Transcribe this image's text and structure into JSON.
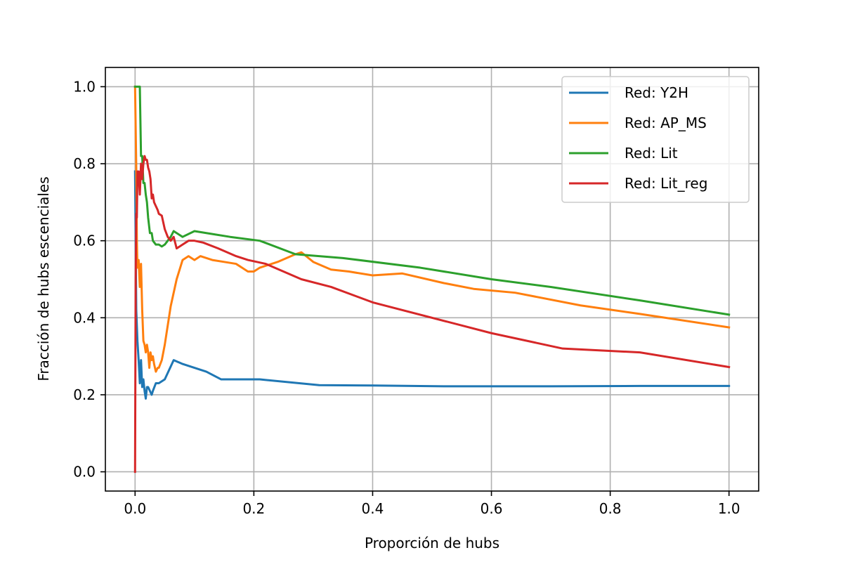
{
  "chart_data": {
    "type": "line",
    "title": "",
    "xlabel": "Proporción de hubs",
    "ylabel": "Fracción de hubs escenciales",
    "xlim": [
      -0.05,
      1.05
    ],
    "ylim": [
      -0.05,
      1.05
    ],
    "xticks": [
      0.0,
      0.2,
      0.4,
      0.6,
      0.8,
      1.0
    ],
    "xtick_labels": [
      "0.0",
      "0.2",
      "0.4",
      "0.6",
      "0.8",
      "1.0"
    ],
    "yticks": [
      0.0,
      0.2,
      0.4,
      0.6,
      0.8,
      1.0
    ],
    "ytick_labels": [
      "0.0",
      "0.2",
      "0.4",
      "0.6",
      "0.8",
      "1.0"
    ],
    "grid": true,
    "legend_position": "top-right",
    "series": [
      {
        "name": "Red: Y2H",
        "color": "#1f77b4",
        "x": [
          0.0,
          0.002,
          0.004,
          0.006,
          0.008,
          0.01,
          0.012,
          0.014,
          0.016,
          0.018,
          0.02,
          0.022,
          0.025,
          0.028,
          0.03,
          0.035,
          0.04,
          0.05,
          0.065,
          0.08,
          0.1,
          0.12,
          0.145,
          0.21,
          0.31,
          0.4,
          0.52,
          0.7,
          0.85,
          1.0
        ],
        "y": [
          0.78,
          0.42,
          0.34,
          0.29,
          0.23,
          0.29,
          0.22,
          0.24,
          0.21,
          0.19,
          0.22,
          0.22,
          0.21,
          0.2,
          0.21,
          0.23,
          0.23,
          0.24,
          0.29,
          0.28,
          0.27,
          0.26,
          0.24,
          0.24,
          0.225,
          0.224,
          0.222,
          0.222,
          0.223,
          0.223
        ]
      },
      {
        "name": "Red: AP_MS",
        "color": "#ff7f0e",
        "x": [
          0.0,
          0.002,
          0.003,
          0.004,
          0.006,
          0.008,
          0.01,
          0.012,
          0.014,
          0.016,
          0.018,
          0.02,
          0.022,
          0.024,
          0.026,
          0.028,
          0.03,
          0.032,
          0.035,
          0.038,
          0.04,
          0.045,
          0.05,
          0.06,
          0.07,
          0.08,
          0.09,
          0.1,
          0.11,
          0.13,
          0.15,
          0.17,
          0.18,
          0.19,
          0.2,
          0.21,
          0.24,
          0.27,
          0.28,
          0.3,
          0.33,
          0.36,
          0.4,
          0.45,
          0.52,
          0.57,
          0.64,
          0.75,
          0.85,
          1.0
        ],
        "y": [
          1.0,
          0.79,
          0.6,
          0.53,
          0.55,
          0.48,
          0.54,
          0.42,
          0.34,
          0.33,
          0.31,
          0.33,
          0.31,
          0.27,
          0.31,
          0.29,
          0.3,
          0.28,
          0.26,
          0.27,
          0.27,
          0.29,
          0.33,
          0.43,
          0.5,
          0.55,
          0.56,
          0.55,
          0.56,
          0.55,
          0.545,
          0.54,
          0.53,
          0.52,
          0.52,
          0.53,
          0.545,
          0.565,
          0.57,
          0.545,
          0.525,
          0.52,
          0.51,
          0.515,
          0.49,
          0.475,
          0.465,
          0.432,
          0.41,
          0.375
        ]
      },
      {
        "name": "Red: Lit",
        "color": "#2ca02c",
        "x": [
          0.0,
          0.002,
          0.004,
          0.006,
          0.008,
          0.01,
          0.012,
          0.014,
          0.016,
          0.018,
          0.02,
          0.022,
          0.025,
          0.028,
          0.03,
          0.035,
          0.04,
          0.045,
          0.05,
          0.055,
          0.06,
          0.065,
          0.07,
          0.08,
          0.1,
          0.12,
          0.16,
          0.21,
          0.27,
          0.35,
          0.48,
          0.6,
          0.7,
          0.85,
          1.0
        ],
        "y": [
          1.0,
          1.0,
          1.0,
          1.0,
          1.0,
          0.82,
          0.82,
          0.75,
          0.75,
          0.72,
          0.7,
          0.66,
          0.62,
          0.62,
          0.6,
          0.59,
          0.59,
          0.585,
          0.59,
          0.6,
          0.61,
          0.625,
          0.62,
          0.61,
          0.625,
          0.62,
          0.61,
          0.6,
          0.565,
          0.555,
          0.53,
          0.5,
          0.48,
          0.445,
          0.408
        ]
      },
      {
        "name": "Red: Lit_reg",
        "color": "#d62728",
        "x": [
          0.0,
          0.001,
          0.002,
          0.003,
          0.004,
          0.005,
          0.006,
          0.008,
          0.01,
          0.012,
          0.014,
          0.016,
          0.018,
          0.02,
          0.022,
          0.024,
          0.026,
          0.028,
          0.03,
          0.032,
          0.035,
          0.038,
          0.04,
          0.045,
          0.05,
          0.055,
          0.06,
          0.065,
          0.07,
          0.08,
          0.09,
          0.1,
          0.115,
          0.14,
          0.17,
          0.19,
          0.22,
          0.28,
          0.33,
          0.4,
          0.6,
          0.72,
          0.85,
          1.0
        ],
        "y": [
          0.0,
          0.5,
          0.67,
          0.66,
          0.78,
          0.77,
          0.78,
          0.72,
          0.8,
          0.76,
          0.8,
          0.82,
          0.81,
          0.81,
          0.79,
          0.78,
          0.76,
          0.71,
          0.72,
          0.7,
          0.69,
          0.68,
          0.67,
          0.665,
          0.63,
          0.61,
          0.6,
          0.61,
          0.58,
          0.59,
          0.6,
          0.6,
          0.595,
          0.58,
          0.56,
          0.55,
          0.54,
          0.5,
          0.48,
          0.44,
          0.36,
          0.32,
          0.31,
          0.272
        ]
      }
    ]
  }
}
